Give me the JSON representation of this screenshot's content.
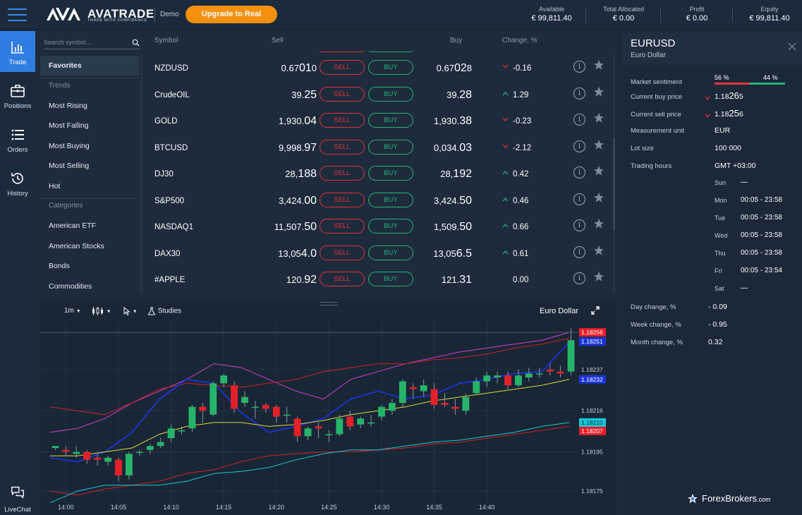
{
  "header": {
    "logo_text": "AVATRADE",
    "logo_tagline": "TRADE WITH CONFIDENCE",
    "mode": "Demo",
    "upgrade_label": "Upgrade to Real",
    "account": [
      {
        "label": "Available",
        "value": "€ 99,811.40"
      },
      {
        "label": "Total Allocated",
        "value": "€ 0.00"
      },
      {
        "label": "Profit",
        "value": "€ 0.00"
      },
      {
        "label": "Equity",
        "value": "€ 99,811.40"
      }
    ]
  },
  "nav": {
    "items": [
      {
        "label": "Trade",
        "icon": "bar-chart-icon",
        "active": true
      },
      {
        "label": "Positions",
        "icon": "briefcase-icon"
      },
      {
        "label": "Orders",
        "icon": "list-icon"
      },
      {
        "label": "History",
        "icon": "history-icon"
      }
    ],
    "livechat_label": "LiveChat"
  },
  "categories": {
    "search_placeholder": "Search symbol...",
    "favorites": "Favorites",
    "trends_heading": "Trends",
    "trends": [
      "Most Rising",
      "Most Falling",
      "Most Buying",
      "Most Selling",
      "Hot"
    ],
    "categories_heading": "Categories",
    "categories": [
      "American ETF",
      "American Stocks",
      "Bonds",
      "Commodities"
    ]
  },
  "table": {
    "columns": {
      "symbol": "Symbol",
      "sell": "Sell",
      "buy": "Buy",
      "change": "Change, %"
    },
    "sell_label": "SELL",
    "buy_label": "BUY",
    "rows": [
      {
        "symbol": "NZDUSD",
        "sell_a": "0.67",
        "sell_b": "01",
        "sell_c": "0",
        "buy_a": "0.67",
        "buy_b": "02",
        "buy_c": "8",
        "change": "-0.16",
        "dir": "down"
      },
      {
        "symbol": "CrudeOIL",
        "sell_a": "39.",
        "sell_b": "25",
        "sell_c": "",
        "buy_a": "39.",
        "buy_b": "28",
        "buy_c": "",
        "change": "1.29",
        "dir": "up"
      },
      {
        "symbol": "GOLD",
        "sell_a": "1,930.",
        "sell_b": "04",
        "sell_c": "",
        "buy_a": "1,930.",
        "buy_b": "38",
        "buy_c": "",
        "change": "-0.23",
        "dir": "down"
      },
      {
        "symbol": "BTCUSD",
        "sell_a": "9,998.",
        "sell_b": "97",
        "sell_c": "",
        "buy_a": "0,034.",
        "buy_b": "03",
        "buy_c": "",
        "change": "-2.12",
        "dir": "down"
      },
      {
        "symbol": "DJ30",
        "sell_a": "28,",
        "sell_b": "188",
        "sell_c": "",
        "buy_a": "28,",
        "buy_b": "192",
        "buy_c": "",
        "change": "0.42",
        "dir": "up"
      },
      {
        "symbol": "S&P500",
        "sell_a": "3,424.",
        "sell_b": "00",
        "sell_c": "",
        "buy_a": "3,424.",
        "buy_b": "50",
        "buy_c": "",
        "change": "0.46",
        "dir": "up"
      },
      {
        "symbol": "NASDAQ1",
        "sell_a": "11,507.",
        "sell_b": "50",
        "sell_c": "",
        "buy_a": "1,509.",
        "buy_b": "50",
        "buy_c": "",
        "change": "0.66",
        "dir": "up"
      },
      {
        "symbol": "DAX30",
        "sell_a": "13,05",
        "sell_b": "4.0",
        "sell_c": "",
        "buy_a": "13,05",
        "buy_b": "6.5",
        "buy_c": "",
        "change": "0.61",
        "dir": "up"
      },
      {
        "symbol": "#APPLE",
        "sell_a": "120.",
        "sell_b": "92",
        "sell_c": "",
        "buy_a": "121.",
        "buy_b": "31",
        "buy_c": "",
        "change": "0.00",
        "dir": "none"
      }
    ]
  },
  "chart_toolbar": {
    "interval": "1m",
    "studies_label": "Studies",
    "title": "Euro Dollar"
  },
  "chart_data": {
    "type": "candlestick",
    "x_ticks": [
      "14:00",
      "14:05",
      "14:10",
      "14:15",
      "14:20",
      "14:25",
      "14:30",
      "14:35",
      "14:40"
    ],
    "y_ticks": [
      "1.18256",
      "1.18251",
      "1.18237",
      "1.18232",
      "1.18216",
      "1.18210",
      "1.18207",
      "1.18195",
      "1.18175"
    ],
    "ylim": [
      1.1817,
      1.1826
    ],
    "price_labels": [
      {
        "value": "1.18256",
        "color": "#e5202a"
      },
      {
        "value": "1.18251",
        "color": "#1b34d6"
      },
      {
        "value": "1.18232",
        "color": "#1b34d6"
      },
      {
        "value": "1.18210",
        "color": "#18c9d9"
      },
      {
        "value": "1.18207",
        "color": "#e5202a"
      }
    ],
    "candles": [
      [
        1.18197,
        1.18198,
        1.18196,
        1.18197
      ],
      [
        1.18196,
        1.18195,
        1.18198,
        1.18193
      ],
      [
        1.18194,
        1.18195,
        1.18198,
        1.18192
      ],
      [
        1.18195,
        1.18191,
        1.18196,
        1.18189
      ],
      [
        1.18192,
        1.18191,
        1.18194,
        1.18188
      ],
      [
        1.1819,
        1.18192,
        1.18193,
        1.18188
      ],
      [
        1.18191,
        1.18183,
        1.18192,
        1.1818
      ],
      [
        1.18183,
        1.18194,
        1.18195,
        1.18181
      ],
      [
        1.18195,
        1.18195,
        1.18196,
        1.18193
      ],
      [
        1.18196,
        1.18198,
        1.18199,
        1.18194
      ],
      [
        1.18198,
        1.182,
        1.18202,
        1.18197
      ],
      [
        1.18202,
        1.18207,
        1.18209,
        1.182
      ],
      [
        1.18206,
        1.18206,
        1.18208,
        1.18204
      ],
      [
        1.18207,
        1.18218,
        1.18219,
        1.18205
      ],
      [
        1.18218,
        1.18216,
        1.1822,
        1.1821
      ],
      [
        1.18214,
        1.1823,
        1.18231,
        1.18213
      ],
      [
        1.1823,
        1.18234,
        1.18235,
        1.18228
      ],
      [
        1.18229,
        1.18217,
        1.18231,
        1.18215
      ],
      [
        1.1822,
        1.18223,
        1.18226,
        1.18218
      ],
      [
        1.18218,
        1.18218,
        1.18221,
        1.18212
      ],
      [
        1.18219,
        1.18217,
        1.1822,
        1.18215
      ],
      [
        1.18218,
        1.18213,
        1.18219,
        1.1821
      ],
      [
        1.18214,
        1.18214,
        1.18218,
        1.1821
      ],
      [
        1.18212,
        1.18203,
        1.18213,
        1.182
      ],
      [
        1.18203,
        1.18207,
        1.18208,
        1.18201
      ],
      [
        1.18208,
        1.18207,
        1.1821,
        1.18202
      ],
      [
        1.18204,
        1.18204,
        1.18206,
        1.182
      ],
      [
        1.18204,
        1.18212,
        1.18214,
        1.18203
      ],
      [
        1.18213,
        1.18208,
        1.18216,
        1.18206
      ],
      [
        1.18209,
        1.18212,
        1.18213,
        1.18207
      ],
      [
        1.1821,
        1.1821,
        1.18214,
        1.18208
      ],
      [
        1.18213,
        1.18218,
        1.18219,
        1.18211
      ],
      [
        1.18216,
        1.1822,
        1.18222,
        1.18214
      ],
      [
        1.1822,
        1.18231,
        1.18232,
        1.18218
      ],
      [
        1.18228,
        1.18227,
        1.1823,
        1.18222
      ],
      [
        1.18226,
        1.18229,
        1.18232,
        1.18223
      ],
      [
        1.18227,
        1.18219,
        1.1823,
        1.18217
      ],
      [
        1.1822,
        1.18219,
        1.18225,
        1.18218
      ],
      [
        1.18218,
        1.18217,
        1.18222,
        1.18214
      ],
      [
        1.18216,
        1.18223,
        1.18225,
        1.18214
      ],
      [
        1.18225,
        1.18231,
        1.18233,
        1.18224
      ],
      [
        1.18231,
        1.18234,
        1.18236,
        1.18228
      ],
      [
        1.18233,
        1.18234,
        1.18236,
        1.1823
      ],
      [
        1.18234,
        1.18229,
        1.18236,
        1.18227
      ],
      [
        1.18229,
        1.18234,
        1.18237,
        1.18228
      ],
      [
        1.18233,
        1.18235,
        1.18238,
        1.18231
      ],
      [
        1.18235,
        1.18235,
        1.18238,
        1.18233
      ],
      [
        1.18237,
        1.18236,
        1.1824,
        1.18234
      ],
      [
        1.18236,
        1.18235,
        1.18239,
        1.18233
      ],
      [
        1.18236,
        1.18252,
        1.18258,
        1.18234
      ]
    ],
    "series": [
      {
        "color": "#d23ed2",
        "values": [
          1.18205,
          1.18207,
          1.18212,
          1.1822,
          1.18226,
          1.18232,
          1.1824,
          1.18238,
          1.18232,
          1.18226,
          1.18222,
          1.18232,
          1.18236,
          1.1824,
          1.18243,
          1.18246,
          1.18248,
          1.1825,
          1.18252,
          1.18256
        ]
      },
      {
        "color": "#d0202a",
        "values": [
          1.18218,
          1.18216,
          1.18214,
          1.1822,
          1.18227,
          1.1823,
          1.18229,
          1.18228,
          1.1823,
          1.18232,
          1.18236,
          1.18238,
          1.1824,
          1.1824,
          1.18242,
          1.18243,
          1.18245,
          1.18248,
          1.1825,
          1.18253
        ]
      },
      {
        "color": "#1b34d6",
        "values": [
          1.18192,
          1.1819,
          1.18195,
          1.18205,
          1.18222,
          1.18232,
          1.1823,
          1.18215,
          1.18205,
          1.18208,
          1.18212,
          1.18222,
          1.18226,
          1.18222,
          1.18224,
          1.1823,
          1.18232,
          1.18235,
          1.18236,
          1.18251
        ]
      },
      {
        "color": "#e0d63a",
        "values": [
          1.18193,
          1.18193,
          1.18195,
          1.18197,
          1.18204,
          1.18208,
          1.1821,
          1.1821,
          1.18208,
          1.18209,
          1.18211,
          1.18214,
          1.18216,
          1.18218,
          1.18221,
          1.18223,
          1.18225,
          1.18227,
          1.18229,
          1.18232
        ]
      },
      {
        "color": "#d0202a",
        "values": [
          1.18175,
          1.18173,
          1.18176,
          1.18178,
          1.1818,
          1.18184,
          1.18186,
          1.1819,
          1.18193,
          1.18194,
          1.18195,
          1.18195,
          1.18196,
          1.18197,
          1.18199,
          1.182,
          1.18202,
          1.18204,
          1.18206,
          1.18208
        ]
      },
      {
        "color": "#18c9d9",
        "values": [
          1.18169,
          1.18175,
          1.18178,
          1.18178,
          1.18178,
          1.1818,
          1.18184,
          1.18185,
          1.18187,
          1.18191,
          1.18194,
          1.18196,
          1.18196,
          1.18198,
          1.182,
          1.18201,
          1.18203,
          1.18205,
          1.18208,
          1.1821
        ]
      }
    ]
  },
  "detail": {
    "symbol": "EURUSD",
    "name": "Euro Dollar",
    "sentiment_label": "Market sentiment",
    "sentiment_sell": "56 %",
    "sentiment_buy": "44 %",
    "sentiment_sell_pct": 56,
    "buy_price_label": "Current buy price",
    "buy_price_a": "1.18",
    "buy_price_b": "26",
    "buy_price_c": "5",
    "sell_price_label": "Current sell price",
    "sell_price_a": "1.18",
    "sell_price_b": "25",
    "sell_price_c": "6",
    "unit_label": "Measurement unit",
    "unit": "EUR",
    "lot_label": "Lot size",
    "lot": "100 000",
    "hours_label": "Trading hours",
    "hours_tz": "GMT +03:00",
    "days": [
      {
        "day": "Sun",
        "hours": "—"
      },
      {
        "day": "Mon",
        "hours": "00:05 - 23:58"
      },
      {
        "day": "Tue",
        "hours": "00:05 - 23:58"
      },
      {
        "day": "Wed",
        "hours": "00:05 - 23:58"
      },
      {
        "day": "Thu",
        "hours": "00:05 - 23:58"
      },
      {
        "day": "Fri",
        "hours": "00:05 - 23:54"
      },
      {
        "day": "Sat",
        "hours": "—"
      }
    ],
    "changes": [
      {
        "label": "Day change, %",
        "value": "- 0.09"
      },
      {
        "label": "Week change, %",
        "value": "- 0.95"
      },
      {
        "label": "Month change, %",
        "value": "0.32"
      }
    ]
  },
  "watermark": {
    "brand": "ForexBrokers",
    "tld": ".com"
  }
}
